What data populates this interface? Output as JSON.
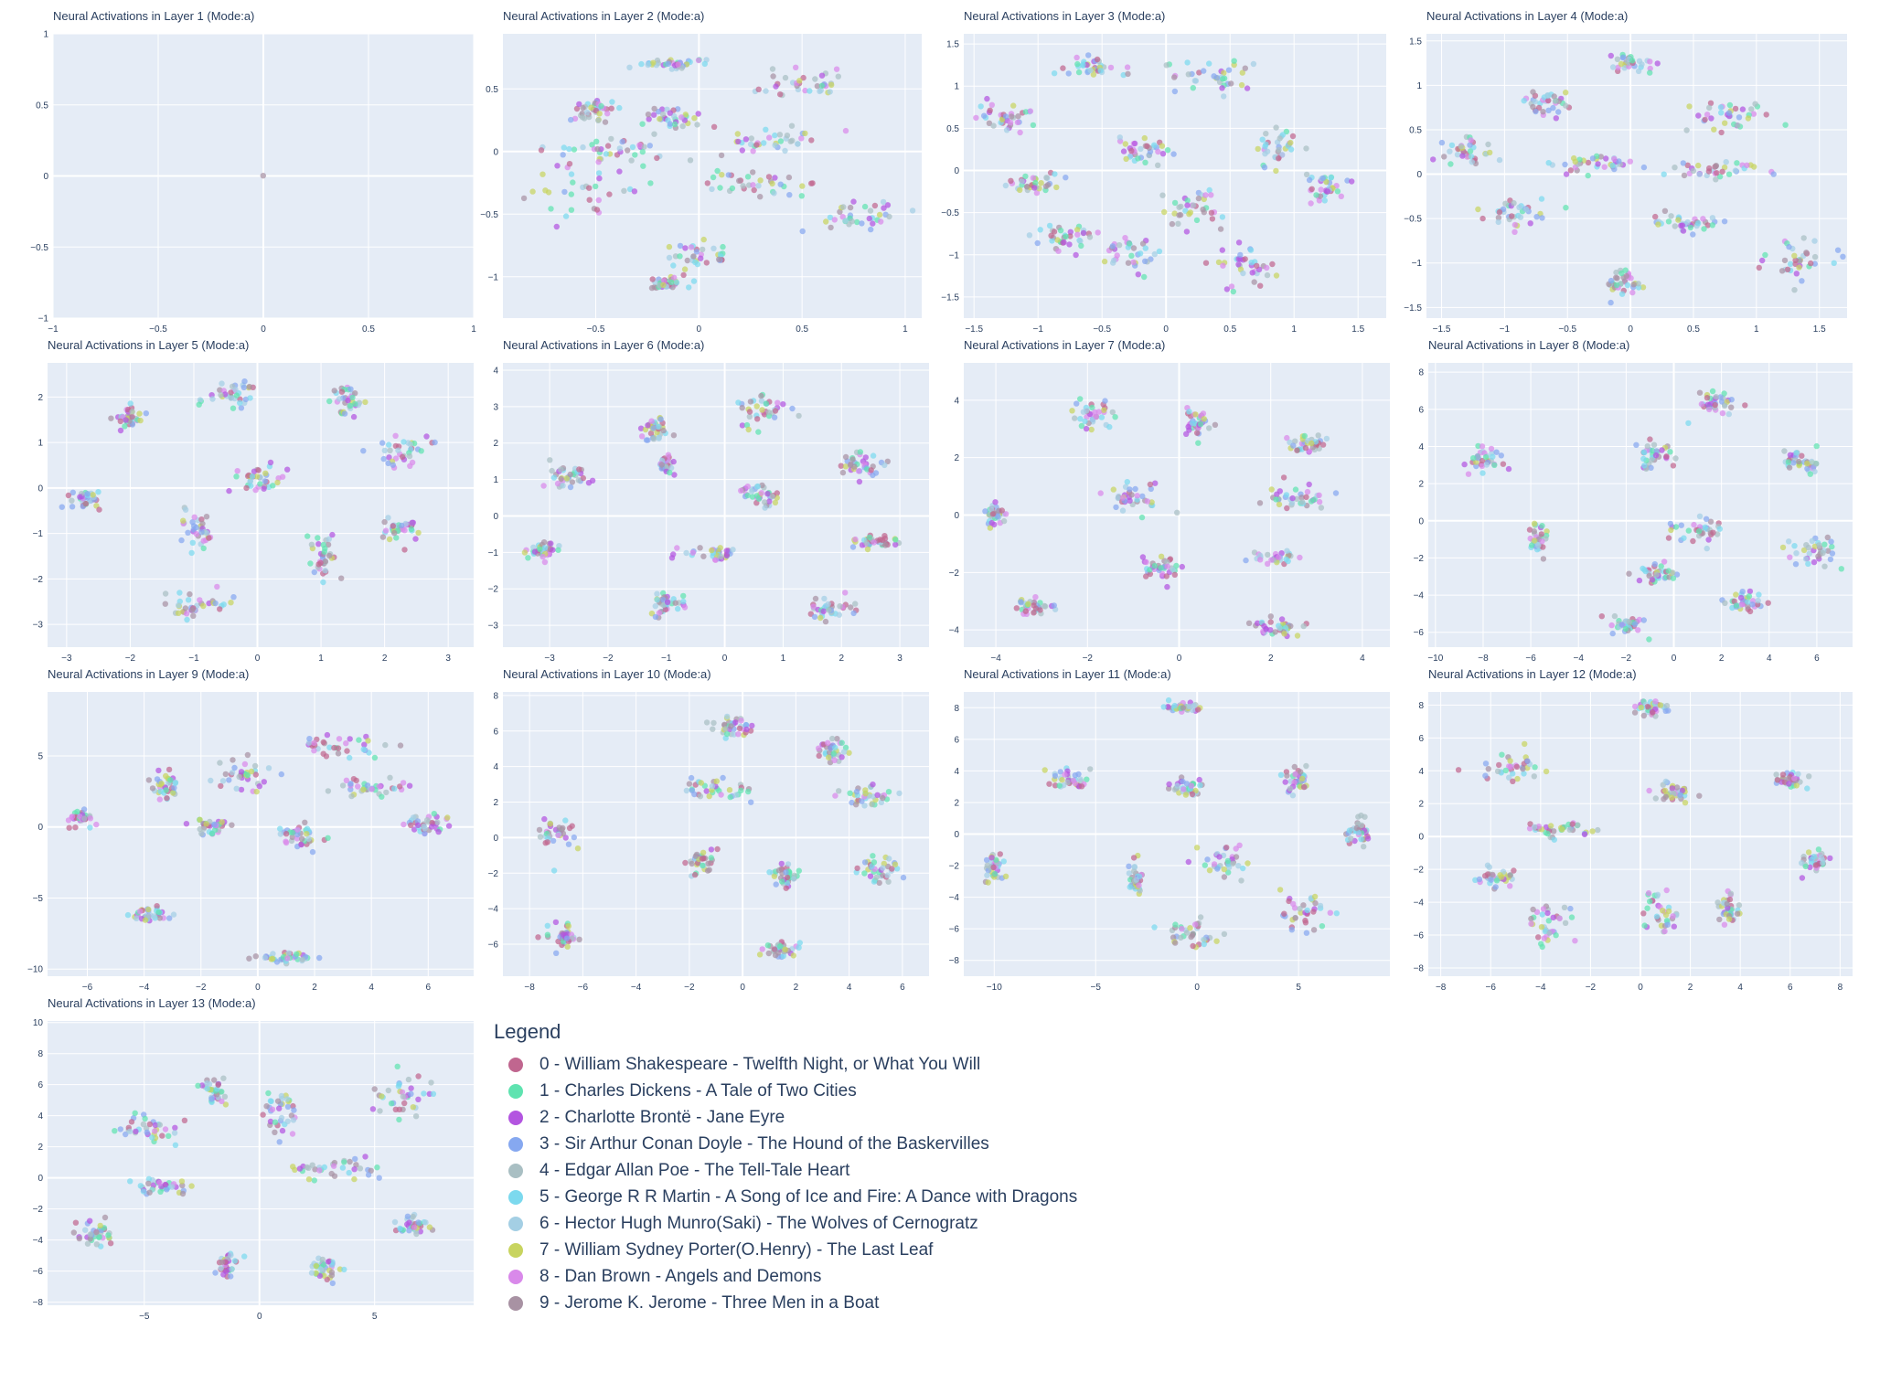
{
  "legend": {
    "title": "Legend",
    "items": [
      {
        "label": "0 - William Shakespeare - Twelfth Night, or What You Will",
        "color": "#c0668f"
      },
      {
        "label": "1 - Charles Dickens - A Tale of Two Cities",
        "color": "#5fe3b0"
      },
      {
        "label": "2 - Charlotte Brontë - Jane Eyre",
        "color": "#b355e0"
      },
      {
        "label": "3 - Sir Arthur Conan Doyle - The Hound of the Baskervilles",
        "color": "#86a8f0"
      },
      {
        "label": "4 - Edgar Allan Poe - The Tell-Tale Heart",
        "color": "#a9bfc3"
      },
      {
        "label": "5 - George R R Martin - A Song of Ice and Fire: A Dance with Dragons",
        "color": "#7cd9ee"
      },
      {
        "label": "6 - Hector Hugh Munro(Saki) - The Wolves of Cernogratz",
        "color": "#a4cfe4"
      },
      {
        "label": "7 - William Sydney Porter(O.Henry) - The Last Leaf",
        "color": "#c8d45f"
      },
      {
        "label": "8 - Dan Brown - Angels and Demons",
        "color": "#d989ea"
      },
      {
        "label": "9 - Jerome K. Jerome - Three Men in a Boat",
        "color": "#a892a3"
      }
    ]
  },
  "chart_data": [
    {
      "type": "scatter",
      "title": "Neural Activations in Layer 1 (Mode:a)",
      "xlim": [
        -1,
        1
      ],
      "ylim": [
        -1,
        1
      ],
      "xticks": [
        -1,
        -0.5,
        0,
        0.5,
        1
      ],
      "yticks": [
        -1,
        -0.5,
        0,
        0.5,
        1
      ],
      "clusters": [
        [
          0,
          0,
          0.003,
          0.003
        ]
      ]
    },
    {
      "type": "scatter",
      "title": "Neural Activations in Layer 2 (Mode:a)",
      "xlim": [
        -0.95,
        1.08
      ],
      "ylim": [
        -1.33,
        0.94
      ],
      "xticks": [
        -0.5,
        0,
        0.5,
        1
      ],
      "yticks": [
        -1,
        -0.5,
        0,
        0.5
      ],
      "clusters": [
        [
          -0.1,
          0.7,
          0.12,
          0.03
        ],
        [
          0.5,
          0.53,
          0.15,
          0.08
        ],
        [
          -0.5,
          0.33,
          0.07,
          0.06
        ],
        [
          -0.15,
          0.27,
          0.1,
          0.08
        ],
        [
          -0.45,
          0.02,
          0.2,
          0.06
        ],
        [
          0.35,
          0.1,
          0.15,
          0.06
        ],
        [
          -0.55,
          -0.3,
          0.18,
          0.12
        ],
        [
          0.28,
          -0.25,
          0.2,
          0.07
        ],
        [
          0.75,
          -0.52,
          0.15,
          0.1
        ],
        [
          0.0,
          -0.85,
          0.1,
          0.08
        ],
        [
          -0.15,
          -1.05,
          0.07,
          0.03
        ]
      ]
    },
    {
      "type": "scatter",
      "title": "Neural Activations in Layer 3 (Mode:a)",
      "xlim": [
        -1.58,
        1.72
      ],
      "ylim": [
        -1.75,
        1.62
      ],
      "xticks": [
        -1.5,
        -1,
        -0.5,
        0,
        0.5,
        1,
        1.5
      ],
      "yticks": [
        -1.5,
        -1,
        -0.5,
        0,
        0.5,
        1,
        1.5
      ],
      "clusters": [
        [
          -0.6,
          1.22,
          0.15,
          0.07
        ],
        [
          0.35,
          1.08,
          0.22,
          0.12
        ],
        [
          -1.25,
          0.62,
          0.15,
          0.12
        ],
        [
          -0.18,
          0.25,
          0.15,
          0.12
        ],
        [
          0.88,
          0.25,
          0.12,
          0.15
        ],
        [
          -1.05,
          -0.15,
          0.15,
          0.08
        ],
        [
          1.25,
          -0.22,
          0.12,
          0.12
        ],
        [
          0.2,
          -0.45,
          0.15,
          0.15
        ],
        [
          -0.8,
          -0.8,
          0.15,
          0.12
        ],
        [
          -0.3,
          -0.98,
          0.15,
          0.15
        ],
        [
          0.65,
          -1.15,
          0.15,
          0.18
        ]
      ]
    },
    {
      "type": "scatter",
      "title": "Neural Activations in Layer 4 (Mode:a)",
      "xlim": [
        -1.62,
        1.72
      ],
      "ylim": [
        -1.62,
        1.58
      ],
      "xticks": [
        -1.5,
        -1,
        -0.5,
        0,
        0.5,
        1,
        1.5
      ],
      "yticks": [
        -1.5,
        -1,
        -0.5,
        0,
        0.5,
        1,
        1.5
      ],
      "clusters": [
        [
          0.0,
          1.25,
          0.12,
          0.07
        ],
        [
          -0.65,
          0.8,
          0.12,
          0.08
        ],
        [
          0.8,
          0.65,
          0.22,
          0.12
        ],
        [
          -1.3,
          0.25,
          0.15,
          0.12
        ],
        [
          -0.3,
          0.12,
          0.2,
          0.08
        ],
        [
          0.65,
          0.05,
          0.25,
          0.06
        ],
        [
          -0.95,
          -0.45,
          0.2,
          0.1
        ],
        [
          0.4,
          -0.55,
          0.18,
          0.08
        ],
        [
          1.35,
          -0.95,
          0.18,
          0.15
        ],
        [
          -0.05,
          -1.22,
          0.12,
          0.1
        ]
      ]
    },
    {
      "type": "scatter",
      "title": "Neural Activations in Layer 5 (Mode:a)",
      "xlim": [
        -3.3,
        3.4
      ],
      "ylim": [
        -3.5,
        2.75
      ],
      "xticks": [
        -3,
        -2,
        -1,
        0,
        1,
        2,
        3
      ],
      "yticks": [
        -3,
        -2,
        -1,
        0,
        1,
        2
      ],
      "clusters": [
        [
          -2.0,
          1.55,
          0.2,
          0.15
        ],
        [
          -0.5,
          1.95,
          0.3,
          0.25
        ],
        [
          1.4,
          1.95,
          0.15,
          0.2
        ],
        [
          2.3,
          0.85,
          0.35,
          0.25
        ],
        [
          -2.7,
          -0.25,
          0.15,
          0.15
        ],
        [
          0.0,
          0.2,
          0.25,
          0.2
        ],
        [
          -0.9,
          -0.95,
          0.2,
          0.25
        ],
        [
          1.0,
          -1.5,
          0.15,
          0.3
        ],
        [
          2.3,
          -0.85,
          0.25,
          0.2
        ],
        [
          -1.0,
          -2.55,
          0.35,
          0.2
        ]
      ]
    },
    {
      "type": "scatter",
      "title": "Neural Activations in Layer 6 (Mode:a)",
      "xlim": [
        -3.8,
        3.5
      ],
      "ylim": [
        -3.6,
        4.2
      ],
      "xticks": [
        -3,
        -2,
        -1,
        0,
        1,
        2,
        3
      ],
      "yticks": [
        -3,
        -2,
        -1,
        0,
        1,
        2,
        3,
        4
      ],
      "clusters": [
        [
          -1.2,
          2.4,
          0.2,
          0.25
        ],
        [
          0.6,
          2.9,
          0.3,
          0.3
        ],
        [
          -1.0,
          1.4,
          0.1,
          0.15
        ],
        [
          2.3,
          1.4,
          0.25,
          0.25
        ],
        [
          -2.7,
          1.0,
          0.2,
          0.2
        ],
        [
          0.6,
          0.6,
          0.2,
          0.2
        ],
        [
          -3.1,
          -0.95,
          0.2,
          0.15
        ],
        [
          -0.3,
          -1.05,
          0.4,
          0.15
        ],
        [
          2.6,
          -0.7,
          0.25,
          0.12
        ],
        [
          -1.0,
          -2.4,
          0.2,
          0.2
        ],
        [
          1.8,
          -2.6,
          0.25,
          0.2
        ]
      ]
    },
    {
      "type": "scatter",
      "title": "Neural Activations in Layer 7 (Mode:a)",
      "xlim": [
        -4.7,
        4.6
      ],
      "ylim": [
        -4.6,
        5.3
      ],
      "xticks": [
        -4,
        -2,
        0,
        2,
        4
      ],
      "yticks": [
        -4,
        -2,
        0,
        2,
        4
      ],
      "clusters": [
        [
          -1.9,
          3.5,
          0.3,
          0.35
        ],
        [
          0.4,
          3.2,
          0.2,
          0.3
        ],
        [
          2.8,
          2.5,
          0.3,
          0.2
        ],
        [
          -1.0,
          0.6,
          0.4,
          0.3
        ],
        [
          2.5,
          0.6,
          0.5,
          0.25
        ],
        [
          -4.0,
          0.0,
          0.2,
          0.25
        ],
        [
          -0.4,
          -1.8,
          0.3,
          0.3
        ],
        [
          2.1,
          -1.5,
          0.3,
          0.12
        ],
        [
          -3.2,
          -3.2,
          0.3,
          0.2
        ],
        [
          2.2,
          -3.9,
          0.4,
          0.2
        ]
      ]
    },
    {
      "type": "scatter",
      "title": "Neural Activations in Layer 8 (Mode:a)",
      "xlim": [
        -10.3,
        7.5
      ],
      "ylim": [
        -6.8,
        8.5
      ],
      "xticks": [
        -10,
        -8,
        -6,
        -4,
        -2,
        0,
        2,
        4,
        6
      ],
      "yticks": [
        -6,
        -4,
        -2,
        0,
        2,
        4,
        6,
        8
      ],
      "clusters": [
        [
          1.8,
          6.3,
          0.7,
          0.5
        ],
        [
          -8.0,
          3.3,
          0.5,
          0.5
        ],
        [
          -0.8,
          3.5,
          0.6,
          0.6
        ],
        [
          5.4,
          3.2,
          0.6,
          0.4
        ],
        [
          1.0,
          -0.5,
          0.7,
          0.5
        ],
        [
          -5.8,
          -1.0,
          0.3,
          0.5
        ],
        [
          5.8,
          -1.7,
          0.7,
          0.6
        ],
        [
          -0.6,
          -2.9,
          0.6,
          0.4
        ],
        [
          2.9,
          -4.4,
          0.5,
          0.4
        ],
        [
          -2.0,
          -5.7,
          0.5,
          0.3
        ]
      ]
    },
    {
      "type": "scatter",
      "title": "Neural Activations in Layer 9 (Mode:a)",
      "xlim": [
        -7.4,
        7.6
      ],
      "ylim": [
        -10.5,
        9.5
      ],
      "xticks": [
        -6,
        -4,
        -2,
        0,
        2,
        4,
        6
      ],
      "yticks": [
        -10,
        -5,
        0,
        5
      ],
      "clusters": [
        [
          2.8,
          5.8,
          1.2,
          0.5
        ],
        [
          -3.3,
          2.8,
          0.4,
          0.6
        ],
        [
          -0.4,
          3.5,
          0.6,
          0.8
        ],
        [
          4.0,
          2.8,
          0.8,
          0.4
        ],
        [
          -6.2,
          0.6,
          0.3,
          0.5
        ],
        [
          -1.6,
          0.0,
          0.5,
          0.4
        ],
        [
          1.5,
          -0.8,
          0.6,
          0.6
        ],
        [
          6.0,
          0.2,
          0.5,
          0.4
        ],
        [
          -3.8,
          -6.0,
          0.4,
          0.4
        ],
        [
          1.0,
          -9.2,
          0.8,
          0.25
        ]
      ]
    },
    {
      "type": "scatter",
      "title": "Neural Activations in Layer 10 (Mode:a)",
      "xlim": [
        -9.0,
        7.0
      ],
      "ylim": [
        -7.8,
        8.2
      ],
      "xticks": [
        -8,
        -6,
        -4,
        -2,
        0,
        2,
        4,
        6
      ],
      "yticks": [
        -6,
        -4,
        -2,
        0,
        2,
        4,
        6,
        8
      ],
      "clusters": [
        [
          -0.5,
          6.2,
          0.5,
          0.6
        ],
        [
          3.4,
          5.0,
          0.4,
          0.4
        ],
        [
          -1.0,
          2.7,
          0.9,
          0.5
        ],
        [
          4.8,
          2.3,
          0.6,
          0.4
        ],
        [
          -6.9,
          0.3,
          0.4,
          0.6
        ],
        [
          -1.5,
          -1.4,
          0.3,
          0.5
        ],
        [
          1.6,
          -2.1,
          0.4,
          0.4
        ],
        [
          5.2,
          -1.8,
          0.6,
          0.6
        ],
        [
          -6.8,
          -5.6,
          0.5,
          0.4
        ],
        [
          1.4,
          -6.3,
          0.5,
          0.25
        ]
      ]
    },
    {
      "type": "scatter",
      "title": "Neural Activations in Layer 11 (Mode:a)",
      "xlim": [
        -11.5,
        9.5
      ],
      "ylim": [
        -9.0,
        9.0
      ],
      "xticks": [
        -10,
        -5,
        0,
        5
      ],
      "yticks": [
        -8,
        -6,
        -4,
        -2,
        0,
        2,
        4,
        6,
        8
      ],
      "clusters": [
        [
          -0.8,
          8.0,
          0.6,
          0.2
        ],
        [
          -6.4,
          3.5,
          0.6,
          0.4
        ],
        [
          -0.4,
          3.0,
          0.5,
          0.4
        ],
        [
          5.0,
          3.5,
          0.5,
          0.6
        ],
        [
          8.0,
          0.2,
          0.4,
          0.5
        ],
        [
          -10.0,
          -2.2,
          0.3,
          0.7
        ],
        [
          -3.0,
          -2.8,
          0.3,
          0.7
        ],
        [
          1.4,
          -1.8,
          0.9,
          0.8
        ],
        [
          5.3,
          -5.0,
          0.8,
          0.8
        ],
        [
          -0.3,
          -6.3,
          0.8,
          0.6
        ]
      ]
    },
    {
      "type": "scatter",
      "title": "Neural Activations in Layer 12 (Mode:a)",
      "xlim": [
        -8.5,
        8.5
      ],
      "ylim": [
        -8.5,
        8.8
      ],
      "xticks": [
        -8,
        -6,
        -4,
        -2,
        0,
        2,
        4,
        6,
        8
      ],
      "yticks": [
        -8,
        -6,
        -4,
        -2,
        0,
        2,
        4,
        6,
        8
      ],
      "clusters": [
        [
          0.5,
          7.8,
          0.5,
          0.3
        ],
        [
          -5.3,
          4.2,
          1.0,
          0.5
        ],
        [
          1.3,
          2.6,
          0.5,
          0.4
        ],
        [
          6.0,
          3.5,
          0.4,
          0.3
        ],
        [
          -3.2,
          0.5,
          1.0,
          0.4
        ],
        [
          -5.8,
          -2.5,
          0.5,
          0.4
        ],
        [
          6.9,
          -1.5,
          0.5,
          0.4
        ],
        [
          -3.7,
          -5.2,
          0.6,
          0.9
        ],
        [
          0.8,
          -4.8,
          0.5,
          1.1
        ],
        [
          3.6,
          -4.4,
          0.3,
          0.7
        ]
      ]
    },
    {
      "type": "scatter",
      "title": "Neural Activations in Layer 13 (Mode:a)",
      "xlim": [
        -9.2,
        9.3
      ],
      "ylim": [
        -8.2,
        10.1
      ],
      "xticks": [
        -5,
        0,
        5
      ],
      "yticks": [
        -8,
        -6,
        -4,
        -2,
        0,
        2,
        4,
        6,
        8,
        10
      ],
      "clusters": [
        [
          -5.0,
          3.2,
          1.0,
          0.6
        ],
        [
          -2.0,
          5.5,
          0.4,
          0.5
        ],
        [
          1.0,
          4.3,
          0.5,
          0.9
        ],
        [
          6.2,
          5.2,
          0.9,
          1.1
        ],
        [
          -4.2,
          -0.5,
          0.8,
          0.3
        ],
        [
          3.2,
          0.5,
          1.5,
          0.5
        ],
        [
          -7.0,
          -3.6,
          0.6,
          0.6
        ],
        [
          6.7,
          -3.0,
          0.4,
          0.4
        ],
        [
          -1.4,
          -5.6,
          0.3,
          0.6
        ],
        [
          2.9,
          -5.9,
          0.4,
          0.6
        ]
      ]
    }
  ]
}
